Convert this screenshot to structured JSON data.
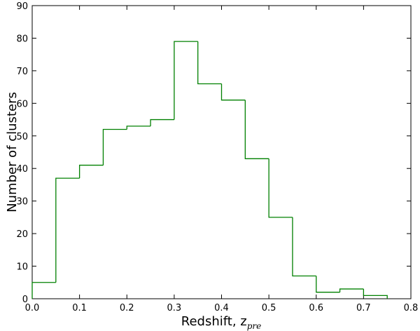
{
  "chart_data": {
    "type": "histogram",
    "xlabel": {
      "text": "Redshift, z",
      "subscript": "pre"
    },
    "ylabel": "Number of clusters",
    "bins": [
      0,
      0.05,
      0.1,
      0.15,
      0.2,
      0.25,
      0.3,
      0.35,
      0.4,
      0.45,
      0.5,
      0.55,
      0.6,
      0.65,
      0.7,
      0.75
    ],
    "values": [
      5,
      37,
      41,
      52,
      53,
      55,
      79,
      66,
      61,
      43,
      25,
      7,
      2,
      3,
      1
    ],
    "color": "#008000",
    "xlim": [
      0,
      0.8
    ],
    "xticks": [
      {
        "value": 0,
        "label": "0.0"
      },
      0.1,
      0.2,
      0.3,
      0.4,
      0.5,
      0.6,
      0.7,
      0.8
    ],
    "ylim": [
      0,
      90
    ],
    "yticks": [
      0,
      10,
      20,
      30,
      40,
      50,
      60,
      70,
      80,
      90
    ],
    "grid": false
  }
}
